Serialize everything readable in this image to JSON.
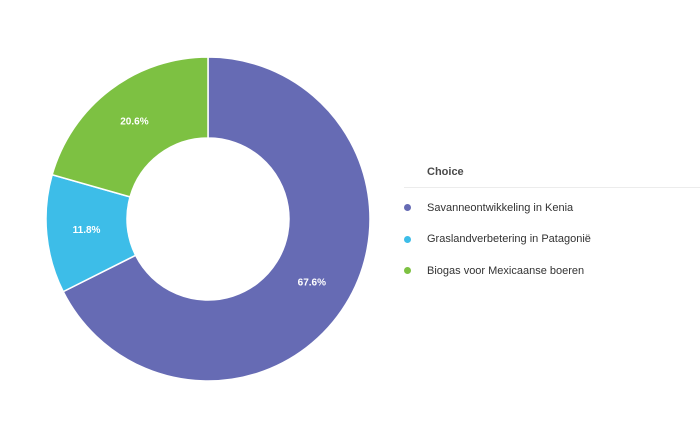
{
  "chart_data": {
    "type": "pie",
    "donut": true,
    "legend": {
      "title": "Choice",
      "position": "right"
    },
    "slices": [
      {
        "label": "Savanneontwikkeling in Kenia",
        "value": 67.6,
        "value_label": "67.6%",
        "color": "#666bb4"
      },
      {
        "label": "Graslandverbetering in Patagonië",
        "value": 11.8,
        "value_label": "11.8%",
        "color": "#3dbde8"
      },
      {
        "label": "Biogas voor Mexicaanse boeren",
        "value": 20.6,
        "value_label": "20.6%",
        "color": "#7dc142"
      }
    ]
  }
}
